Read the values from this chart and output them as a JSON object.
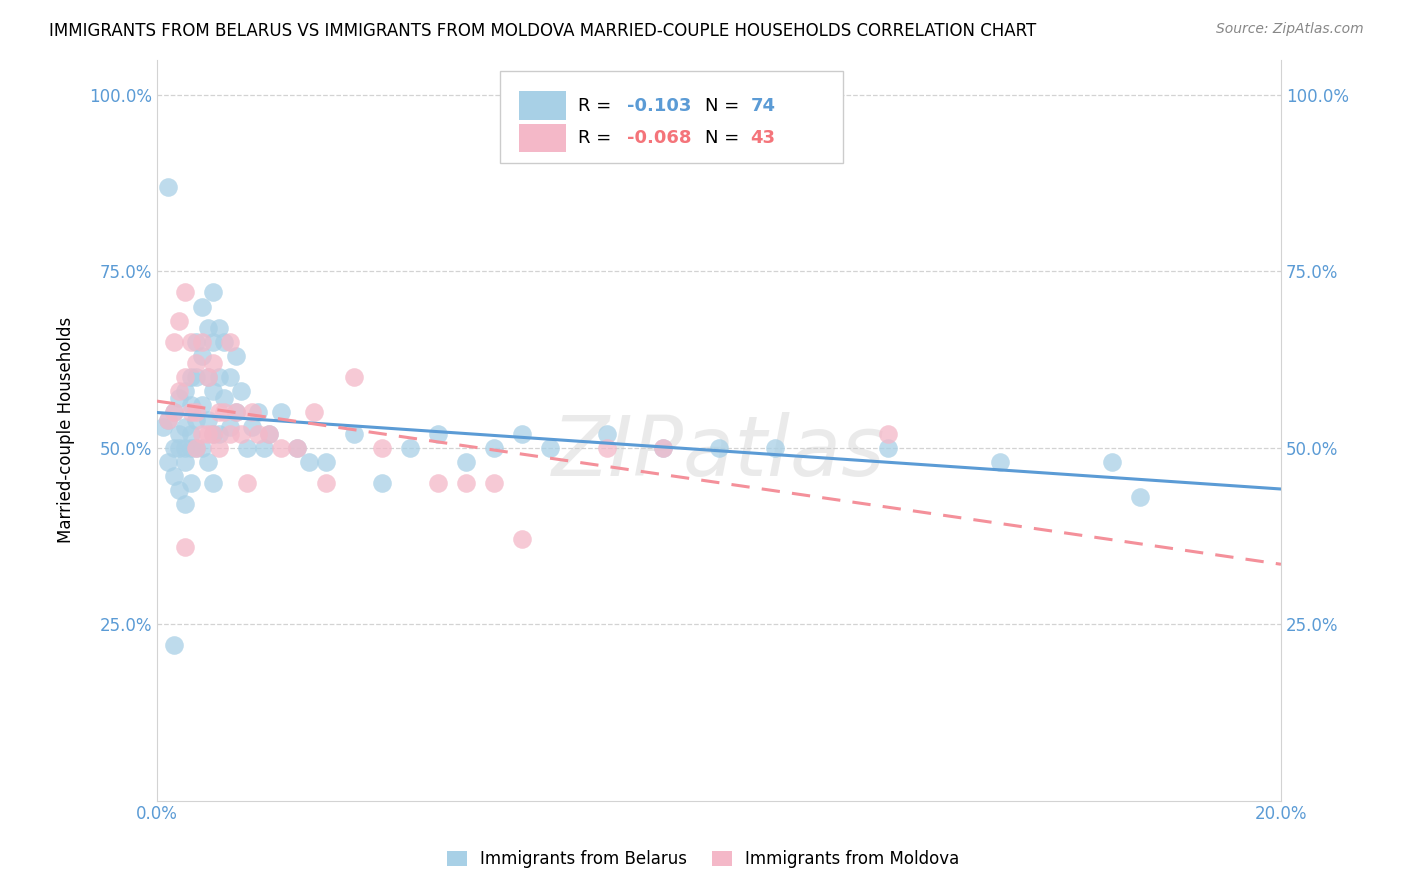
{
  "title": "IMMIGRANTS FROM BELARUS VS IMMIGRANTS FROM MOLDOVA MARRIED-COUPLE HOUSEHOLDS CORRELATION CHART",
  "source": "Source: ZipAtlas.com",
  "ylabel": "Married-couple Households",
  "ytick_labels": [
    "",
    "25.0%",
    "50.0%",
    "75.0%",
    "100.0%"
  ],
  "ytick_values": [
    0.0,
    0.25,
    0.5,
    0.75,
    1.0
  ],
  "ytick_right_labels": [
    "100.0%",
    "75.0%",
    "50.0%",
    "25.0%"
  ],
  "xlim": [
    0.0,
    0.2
  ],
  "ylim": [
    0.0,
    1.05
  ],
  "r1": "-0.103",
  "n1": "74",
  "r2": "-0.068",
  "n2": "43",
  "color_belarus": "#a8d0e6",
  "color_moldova": "#f4b8c8",
  "trend_color_belarus": "#5b9bd5",
  "trend_color_moldova": "#f4909a",
  "watermark": "ZIPatlas",
  "belarus_x": [
    0.001,
    0.002,
    0.002,
    0.003,
    0.003,
    0.003,
    0.003,
    0.004,
    0.004,
    0.004,
    0.004,
    0.005,
    0.005,
    0.005,
    0.005,
    0.005,
    0.006,
    0.006,
    0.006,
    0.006,
    0.006,
    0.007,
    0.007,
    0.007,
    0.007,
    0.008,
    0.008,
    0.008,
    0.008,
    0.009,
    0.009,
    0.009,
    0.009,
    0.01,
    0.01,
    0.01,
    0.01,
    0.01,
    0.011,
    0.011,
    0.011,
    0.012,
    0.012,
    0.013,
    0.013,
    0.014,
    0.014,
    0.015,
    0.016,
    0.017,
    0.018,
    0.019,
    0.02,
    0.022,
    0.025,
    0.027,
    0.03,
    0.035,
    0.04,
    0.045,
    0.05,
    0.055,
    0.06,
    0.065,
    0.07,
    0.08,
    0.09,
    0.1,
    0.11,
    0.13,
    0.15,
    0.17,
    0.002,
    0.175
  ],
  "belarus_y": [
    0.53,
    0.54,
    0.48,
    0.22,
    0.55,
    0.5,
    0.46,
    0.57,
    0.52,
    0.5,
    0.44,
    0.58,
    0.53,
    0.5,
    0.48,
    0.42,
    0.6,
    0.56,
    0.52,
    0.5,
    0.45,
    0.65,
    0.6,
    0.54,
    0.5,
    0.7,
    0.63,
    0.56,
    0.5,
    0.67,
    0.6,
    0.54,
    0.48,
    0.72,
    0.65,
    0.58,
    0.52,
    0.45,
    0.67,
    0.6,
    0.52,
    0.65,
    0.57,
    0.6,
    0.53,
    0.63,
    0.55,
    0.58,
    0.5,
    0.53,
    0.55,
    0.5,
    0.52,
    0.55,
    0.5,
    0.48,
    0.48,
    0.52,
    0.45,
    0.5,
    0.52,
    0.48,
    0.5,
    0.52,
    0.5,
    0.52,
    0.5,
    0.5,
    0.5,
    0.5,
    0.48,
    0.48,
    0.87,
    0.43
  ],
  "moldova_x": [
    0.002,
    0.003,
    0.003,
    0.004,
    0.004,
    0.005,
    0.005,
    0.006,
    0.006,
    0.007,
    0.007,
    0.008,
    0.008,
    0.009,
    0.009,
    0.01,
    0.01,
    0.011,
    0.011,
    0.012,
    0.013,
    0.013,
    0.014,
    0.015,
    0.016,
    0.017,
    0.018,
    0.02,
    0.022,
    0.025,
    0.028,
    0.03,
    0.035,
    0.04,
    0.05,
    0.055,
    0.06,
    0.065,
    0.08,
    0.09,
    0.13,
    0.005,
    0.007
  ],
  "moldova_y": [
    0.54,
    0.65,
    0.55,
    0.68,
    0.58,
    0.72,
    0.6,
    0.65,
    0.55,
    0.62,
    0.55,
    0.65,
    0.52,
    0.6,
    0.52,
    0.62,
    0.52,
    0.55,
    0.5,
    0.55,
    0.65,
    0.52,
    0.55,
    0.52,
    0.45,
    0.55,
    0.52,
    0.52,
    0.5,
    0.5,
    0.55,
    0.45,
    0.6,
    0.5,
    0.45,
    0.45,
    0.45,
    0.37,
    0.5,
    0.5,
    0.52,
    0.36,
    0.5
  ]
}
